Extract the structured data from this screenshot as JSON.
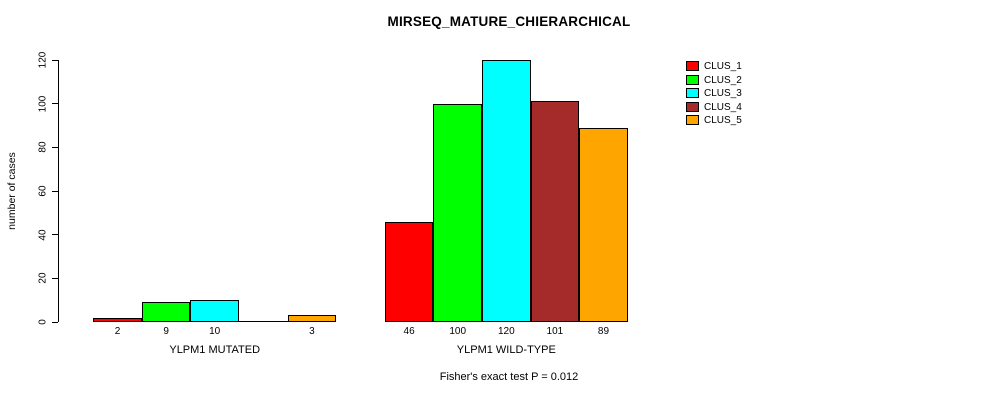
{
  "title": "MIRSEQ_MATURE_CHIERARCHICAL",
  "footer": "Fisher's exact test P = 0.012",
  "chart_data": {
    "type": "bar",
    "title": "MIRSEQ_MATURE_CHIERARCHICAL",
    "xlabel": "",
    "ylabel": "number of cases",
    "ylim": [
      0,
      120
    ],
    "yticks": [
      0,
      20,
      40,
      60,
      80,
      100,
      120
    ],
    "grid": false,
    "legend_position": "right",
    "categories": [
      "YLPM1 MUTATED",
      "YLPM1 WILD-TYPE"
    ],
    "series": [
      {
        "name": "CLUS_1",
        "color": "#FF0000",
        "values": [
          2,
          46
        ]
      },
      {
        "name": "CLUS_2",
        "color": "#00FF00",
        "values": [
          9,
          100
        ]
      },
      {
        "name": "CLUS_3",
        "color": "#00FFFF",
        "values": [
          10,
          120
        ]
      },
      {
        "name": "CLUS_4",
        "color": "#A52A2A",
        "values": [
          0,
          101
        ]
      },
      {
        "name": "CLUS_5",
        "color": "#FFA500",
        "values": [
          3,
          89
        ]
      }
    ],
    "bar_value_labels": true,
    "zero_value_labels_hidden": true,
    "annotation": "Fisher's exact test P = 0.012"
  }
}
